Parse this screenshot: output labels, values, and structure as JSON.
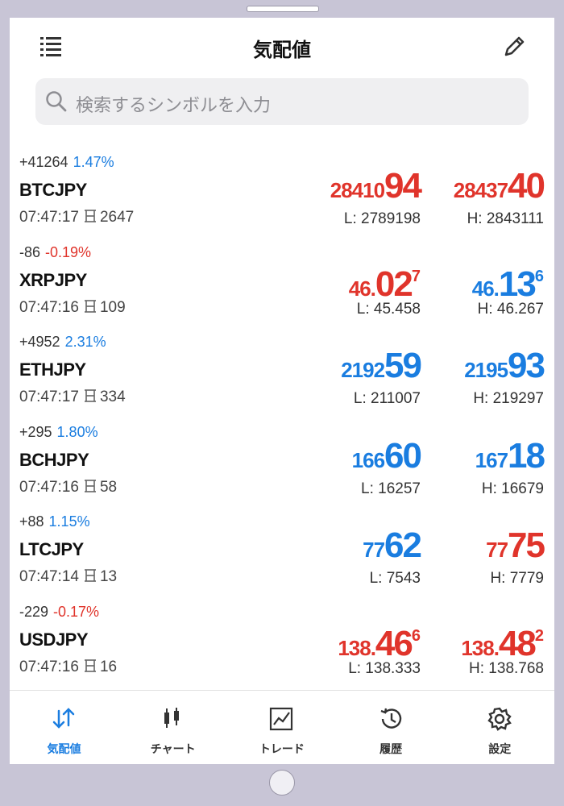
{
  "header": {
    "title": "気配値"
  },
  "search": {
    "placeholder": "検索するシンボルを入力"
  },
  "rows": [
    {
      "change": "+41264",
      "percent": "1.47%",
      "trend": "up",
      "symbol": "BTCJPY",
      "time": "07:47:17",
      "spread": "2647",
      "bid": {
        "color": "red",
        "prefix": "28410",
        "big": "94"
      },
      "ask": {
        "color": "red",
        "prefix": "28437",
        "big": "40"
      },
      "low": "L: 2789198",
      "high": "H: 2843111"
    },
    {
      "change": "-86",
      "percent": "-0.19%",
      "trend": "down",
      "symbol": "XRPJPY",
      "time": "07:47:16",
      "spread": "109",
      "bid": {
        "color": "red",
        "prefix": "46.",
        "big": "02",
        "sup": "7"
      },
      "ask": {
        "color": "blue",
        "prefix": "46.",
        "big": "13",
        "sup": "6"
      },
      "low": "L: 45.458",
      "high": "H: 46.267"
    },
    {
      "change": "+4952",
      "percent": "2.31%",
      "trend": "up",
      "symbol": "ETHJPY",
      "time": "07:47:17",
      "spread": "334",
      "bid": {
        "color": "blue",
        "prefix": "2192",
        "big": "59"
      },
      "ask": {
        "color": "blue",
        "prefix": "2195",
        "big": "93"
      },
      "low": "L: 211007",
      "high": "H: 219297"
    },
    {
      "change": "+295",
      "percent": "1.80%",
      "trend": "up",
      "symbol": "BCHJPY",
      "time": "07:47:16",
      "spread": "58",
      "bid": {
        "color": "blue",
        "prefix": "166",
        "big": "60"
      },
      "ask": {
        "color": "blue",
        "prefix": "167",
        "big": "18"
      },
      "low": "L: 16257",
      "high": "H: 16679"
    },
    {
      "change": "+88",
      "percent": "1.15%",
      "trend": "up",
      "symbol": "LTCJPY",
      "time": "07:47:14",
      "spread": "13",
      "bid": {
        "color": "blue",
        "prefix": "77",
        "big": "62"
      },
      "ask": {
        "color": "red",
        "prefix": "77",
        "big": "75"
      },
      "low": "L: 7543",
      "high": "H: 7779"
    },
    {
      "change": "-229",
      "percent": "-0.17%",
      "trend": "down",
      "symbol": "USDJPY",
      "time": "07:47:16",
      "spread": "16",
      "bid": {
        "color": "red",
        "prefix": "138.",
        "big": "46",
        "sup": "6"
      },
      "ask": {
        "color": "red",
        "prefix": "138.",
        "big": "48",
        "sup": "2"
      },
      "low": "L: 138.333",
      "high": "H: 138.768"
    }
  ],
  "tabs": [
    {
      "label": "気配値",
      "active": true
    },
    {
      "label": "チャート",
      "active": false
    },
    {
      "label": "トレード",
      "active": false
    },
    {
      "label": "履歴",
      "active": false
    },
    {
      "label": "設定",
      "active": false
    }
  ]
}
